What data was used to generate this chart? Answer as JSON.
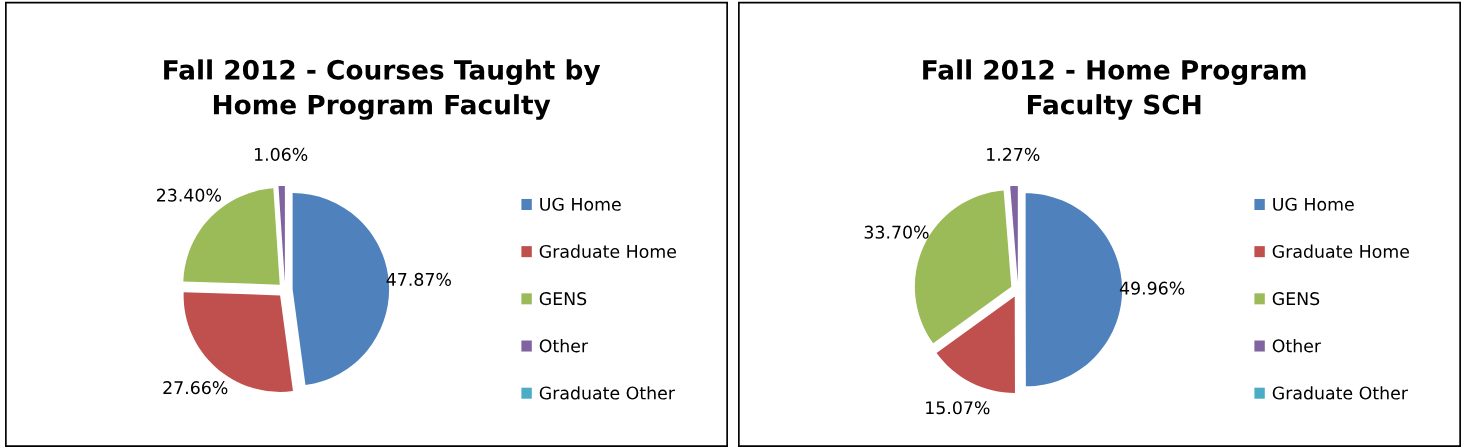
{
  "chart_data": [
    {
      "type": "pie",
      "title": "Fall 2012 - Courses Taught by\nHome Program Faculty",
      "categories": [
        "UG Home",
        "Graduate Home",
        "GENS",
        "Other",
        "Graduate Other"
      ],
      "values": [
        47.87,
        27.66,
        23.4,
        1.06,
        0
      ],
      "colors": [
        "#4f81bd",
        "#c0504d",
        "#9bbb59",
        "#8064a2",
        "#4bacc6"
      ],
      "value_labels": [
        "47.87%",
        "27.66%",
        "23.40%",
        "1.06%",
        null
      ],
      "legend": "right"
    },
    {
      "type": "pie",
      "title": "Fall 2012 - Home Program\nFaculty SCH",
      "categories": [
        "UG Home",
        "Graduate Home",
        "GENS",
        "Other",
        "Graduate Other"
      ],
      "values": [
        49.96,
        15.07,
        33.7,
        1.27,
        0
      ],
      "colors": [
        "#4f81bd",
        "#c0504d",
        "#9bbb59",
        "#8064a2",
        "#4bacc6"
      ],
      "value_labels": [
        "49.96%",
        "15.07%",
        "33.70%",
        "1.27%",
        null
      ],
      "legend": "right"
    }
  ]
}
